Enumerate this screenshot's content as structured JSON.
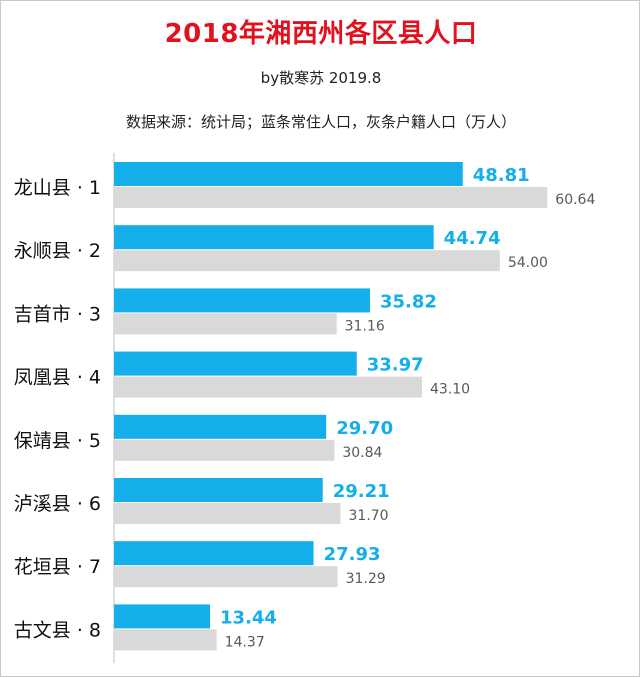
{
  "chart_data": {
    "type": "bar",
    "orientation": "horizontal",
    "title": "2018年湘西州各区县人口",
    "subtitle": "by散寒苏 2019.8",
    "note": "数据来源：统计局；蓝条常住人口，灰条户籍人口（万人）",
    "categories": [
      "龙山县 · 1",
      "永顺县 · 2",
      "吉首市 · 3",
      "凤凰县 · 4",
      "保靖县 · 5",
      "泸溪县 · 6",
      "花垣县 · 7",
      "古文县 · 8"
    ],
    "series": [
      {
        "values": [
          48.81,
          44.74,
          35.82,
          33.97,
          29.7,
          29.21,
          27.93,
          13.44
        ],
        "labels": [
          "48.81",
          "44.74",
          "35.82",
          "33.97",
          "29.70",
          "29.21",
          "27.93",
          "13.44"
        ],
        "color": "#14aeea"
      },
      {
        "values": [
          60.64,
          54.0,
          31.16,
          43.1,
          30.84,
          31.7,
          31.29,
          14.37
        ],
        "labels": [
          "60.64",
          "54.00",
          "31.16",
          "43.10",
          "30.84",
          "31.70",
          "31.29",
          "14.37"
        ],
        "color": "#d9d9d9"
      }
    ],
    "xlim": [
      0,
      62
    ],
    "legend": "none",
    "grid": false
  }
}
